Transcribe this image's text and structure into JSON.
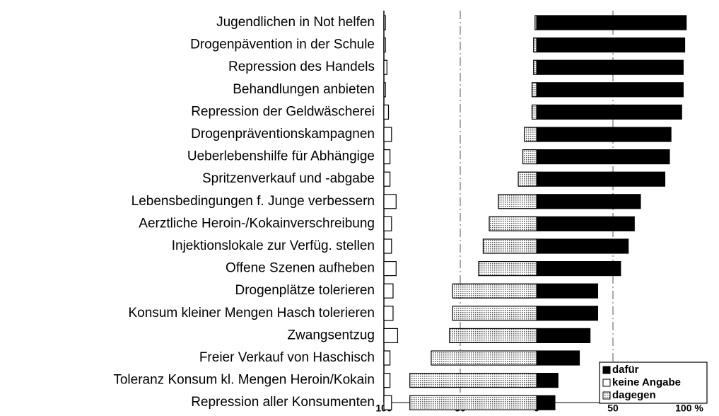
{
  "chart_data": {
    "type": "diverging_bar",
    "categories": [
      "Jugendlichen in Not helfen",
      "Drogenpävention in der Schule",
      "Repression des Handels",
      "Behandlungen anbieten",
      "Repression der Geldwäscherei",
      "Drogenpräventionskampagnen",
      "Ueberlebenshilfe für Abhängige",
      "Spritzenverkauf und -abgabe",
      "Lebensbedingungen f. Junge verbessern",
      "Aerztliche Heroin-/Kokainverschreibung",
      "Injektionslokale zur Verfüg. stellen",
      "Offene Szenen aufheben",
      "Drogenplätze tolerieren",
      "Konsum kleiner Mengen Hasch tolerieren",
      "Zwangsentzug",
      "Freier Verkauf von Haschisch",
      "Toleranz Konsum kl. Mengen Heroin/Kokain",
      "Repression aller Konsumenten"
    ],
    "series": [
      {
        "name": "dafür",
        "color": "#000000",
        "values": [
          98,
          97,
          96,
          96,
          95,
          88,
          87,
          84,
          68,
          64,
          60,
          55,
          40,
          40,
          35,
          28,
          14,
          12
        ]
      },
      {
        "name": "keine Angabe",
        "color": "#ffffff",
        "values": [
          1,
          1,
          2,
          1,
          3,
          5,
          4,
          4,
          8,
          5,
          5,
          8,
          6,
          6,
          9,
          4,
          4,
          5
        ]
      },
      {
        "name": "dagegen",
        "color": "#bbbbbb",
        "values": [
          -1,
          -2,
          -2,
          -3,
          -3,
          -8,
          -9,
          -12,
          -25,
          -31,
          -35,
          -38,
          -55,
          -55,
          -57,
          -69,
          -83,
          -83
        ]
      }
    ],
    "xlim": [
      -100,
      100
    ],
    "xticks": [
      {
        "value": -100,
        "label": "100"
      },
      {
        "value": -50,
        "label": "50"
      },
      0,
      50,
      {
        "value": 100,
        "label": "100 %"
      }
    ],
    "grid": true,
    "legend": "lower right"
  }
}
